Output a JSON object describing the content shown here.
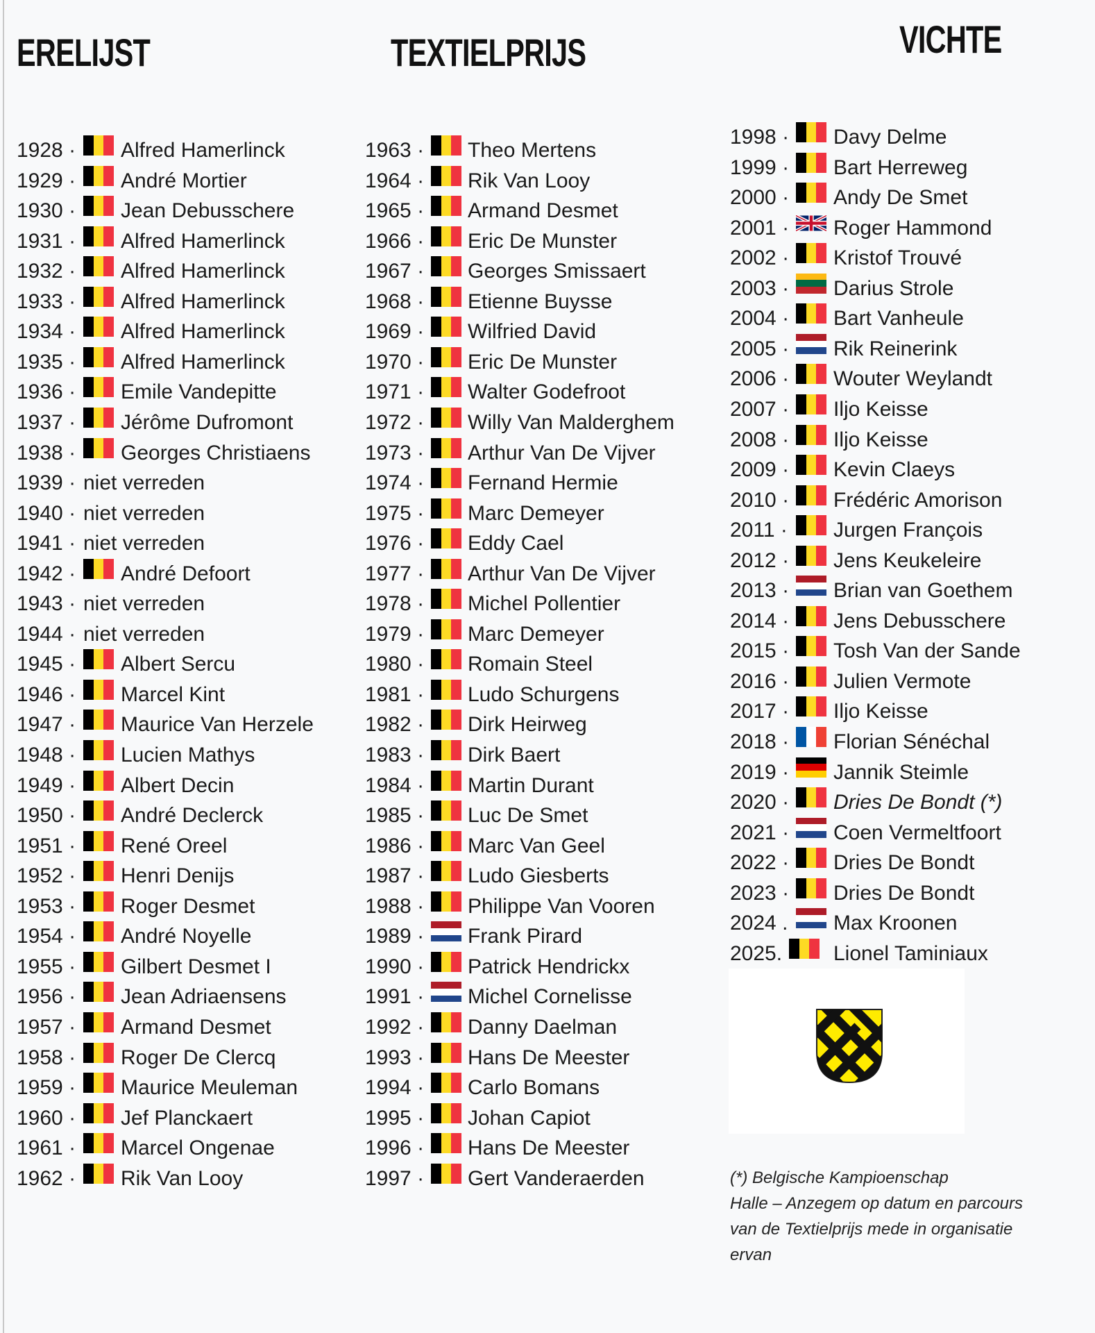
{
  "titles": {
    "col1": "ERELIJST",
    "col2": "TEXTIELPRIJS",
    "col3": "VICHTE"
  },
  "flag_colors": {
    "belgium": [
      "#000000",
      "#FDDA24",
      "#EF3340"
    ],
    "netherlands": [
      "#AE1C28",
      "#FFFFFF",
      "#21468B"
    ],
    "france": [
      "#0055A4",
      "#FFFFFF",
      "#EF4135"
    ],
    "germany": [
      "#000000",
      "#DD0000",
      "#FFCE00"
    ],
    "lithuania": [
      "#FDB913",
      "#006A44",
      "#C1272D"
    ]
  },
  "columns": [
    [
      {
        "year": "1928",
        "sep": " ·",
        "flag": "belgium",
        "name": "Alfred Hamerlinck"
      },
      {
        "year": "1929",
        "sep": " ·",
        "flag": "belgium",
        "name": "André Mortier"
      },
      {
        "year": "1930",
        "sep": " ·",
        "flag": "belgium",
        "name": "Jean Debusschere"
      },
      {
        "year": "1931",
        "sep": " ·",
        "flag": "belgium",
        "name": "Alfred Hamerlinck"
      },
      {
        "year": "1932",
        "sep": " ·",
        "flag": "belgium",
        "name": "Alfred Hamerlinck"
      },
      {
        "year": "1933",
        "sep": " ·",
        "flag": "belgium",
        "name": "Alfred Hamerlinck"
      },
      {
        "year": "1934",
        "sep": " ·",
        "flag": "belgium",
        "name": "Alfred Hamerlinck"
      },
      {
        "year": "1935",
        "sep": " ·",
        "flag": "belgium",
        "name": "Alfred Hamerlinck"
      },
      {
        "year": "1936",
        "sep": " ·",
        "flag": "belgium",
        "name": "Emile Vandepitte"
      },
      {
        "year": "1937",
        "sep": " ·",
        "flag": "belgium",
        "name": "Jérôme Dufromont"
      },
      {
        "year": "1938",
        "sep": " ·",
        "flag": "belgium",
        "name": "Georges Christiaens"
      },
      {
        "year": "1939",
        "sep": " ·",
        "flag": "",
        "name": "niet verreden"
      },
      {
        "year": "1940",
        "sep": " ·",
        "flag": "",
        "name": "niet verreden"
      },
      {
        "year": "1941",
        "sep": " ·",
        "flag": "",
        "name": "niet verreden"
      },
      {
        "year": "1942",
        "sep": " ·",
        "flag": "belgium",
        "name": "André Defoort"
      },
      {
        "year": "1943",
        "sep": " ·",
        "flag": "",
        "name": "niet verreden"
      },
      {
        "year": "1944",
        "sep": " ·",
        "flag": "",
        "name": "niet verreden"
      },
      {
        "year": "1945",
        "sep": " ·",
        "flag": "belgium",
        "name": "Albert Sercu"
      },
      {
        "year": "1946",
        "sep": " ·",
        "flag": "belgium",
        "name": "Marcel Kint"
      },
      {
        "year": "1947",
        "sep": " ·",
        "flag": "belgium",
        "name": "Maurice Van Herzele"
      },
      {
        "year": "1948",
        "sep": " ·",
        "flag": "belgium",
        "name": "Lucien Mathys"
      },
      {
        "year": "1949",
        "sep": " ·",
        "flag": "belgium",
        "name": "Albert Decin"
      },
      {
        "year": "1950",
        "sep": " ·",
        "flag": "belgium",
        "name": "André Declerck"
      },
      {
        "year": "1951",
        "sep": " ·",
        "flag": "belgium",
        "name": "René Oreel"
      },
      {
        "year": "1952",
        "sep": " ·",
        "flag": "belgium",
        "name": "Henri Denijs"
      },
      {
        "year": "1953",
        "sep": " ·",
        "flag": "belgium",
        "name": "Roger Desmet"
      },
      {
        "year": "1954",
        "sep": " ·",
        "flag": "belgium",
        "name": "André Noyelle"
      },
      {
        "year": "1955",
        "sep": " ·",
        "flag": "belgium",
        "name": "Gilbert Desmet I"
      },
      {
        "year": "1956",
        "sep": " ·",
        "flag": "belgium",
        "name": "Jean Adriaensens"
      },
      {
        "year": "1957",
        "sep": " ·",
        "flag": "belgium",
        "name": "Armand Desmet"
      },
      {
        "year": "1958",
        "sep": " ·",
        "flag": "belgium",
        "name": "Roger De Clercq"
      },
      {
        "year": "1959",
        "sep": " ·",
        "flag": "belgium",
        "name": "Maurice Meuleman"
      },
      {
        "year": "1960",
        "sep": " ·",
        "flag": "belgium",
        "name": "Jef Planckaert"
      },
      {
        "year": "1961",
        "sep": " ·",
        "flag": "belgium",
        "name": "Marcel Ongenae"
      },
      {
        "year": "1962",
        "sep": " ·",
        "flag": "belgium",
        "name": "Rik Van Looy"
      }
    ],
    [
      {
        "year": "1963",
        "sep": " ·",
        "flag": "belgium",
        "name": "Theo Mertens"
      },
      {
        "year": "1964",
        "sep": " ·",
        "flag": "belgium",
        "name": "Rik Van Looy"
      },
      {
        "year": "1965",
        "sep": " ·",
        "flag": "belgium",
        "name": "Armand Desmet"
      },
      {
        "year": "1966",
        "sep": " ·",
        "flag": "belgium",
        "name": "Eric De Munster"
      },
      {
        "year": "1967",
        "sep": " ·",
        "flag": "belgium",
        "name": "Georges Smissaert"
      },
      {
        "year": "1968",
        "sep": " ·",
        "flag": "belgium",
        "name": "Etienne Buysse"
      },
      {
        "year": "1969",
        "sep": " ·",
        "flag": "belgium",
        "name": "Wilfried David"
      },
      {
        "year": "1970",
        "sep": " ·",
        "flag": "belgium",
        "name": "Eric De Munster"
      },
      {
        "year": "1971",
        "sep": " ·",
        "flag": "belgium",
        "name": "Walter Godefroot"
      },
      {
        "year": "1972",
        "sep": " ·",
        "flag": "belgium",
        "name": "Willy Van Malderghem"
      },
      {
        "year": "1973",
        "sep": " ·",
        "flag": "belgium",
        "name": "Arthur Van De Vijver"
      },
      {
        "year": "1974",
        "sep": " ·",
        "flag": "belgium",
        "name": "Fernand Hermie"
      },
      {
        "year": "1975",
        "sep": " ·",
        "flag": "belgium",
        "name": "Marc Demeyer"
      },
      {
        "year": "1976",
        "sep": " ·",
        "flag": "belgium",
        "name": "Eddy Cael"
      },
      {
        "year": "1977",
        "sep": " ·",
        "flag": "belgium",
        "name": "Arthur Van De Vijver"
      },
      {
        "year": "1978",
        "sep": " ·",
        "flag": "belgium",
        "name": "Michel Pollentier"
      },
      {
        "year": "1979",
        "sep": " ·",
        "flag": "belgium",
        "name": "Marc Demeyer"
      },
      {
        "year": "1980",
        "sep": " ·",
        "flag": "belgium",
        "name": "Romain Steel"
      },
      {
        "year": "1981",
        "sep": " ·",
        "flag": "belgium",
        "name": "Ludo Schurgens"
      },
      {
        "year": "1982",
        "sep": " ·",
        "flag": "belgium",
        "name": "Dirk Heirweg"
      },
      {
        "year": "1983",
        "sep": " ·",
        "flag": "belgium",
        "name": "Dirk Baert"
      },
      {
        "year": "1984",
        "sep": " ·",
        "flag": "belgium",
        "name": "Martin Durant"
      },
      {
        "year": "1985",
        "sep": " ·",
        "flag": "belgium",
        "name": "Luc De Smet"
      },
      {
        "year": "1986",
        "sep": " ·",
        "flag": "belgium",
        "name": "Marc Van Geel"
      },
      {
        "year": "1987",
        "sep": " ·",
        "flag": "belgium",
        "name": "Ludo Giesberts"
      },
      {
        "year": "1988",
        "sep": " ·",
        "flag": "belgium",
        "name": "Philippe Van Vooren"
      },
      {
        "year": "1989",
        "sep": " ·",
        "flag": "netherlands",
        "name": "Frank Pirard"
      },
      {
        "year": "1990",
        "sep": " ·",
        "flag": "belgium",
        "name": "Patrick Hendrickx"
      },
      {
        "year": "1991",
        "sep": " ·",
        "flag": "netherlands",
        "name": "Michel Cornelisse"
      },
      {
        "year": "1992",
        "sep": " ·",
        "flag": "belgium",
        "name": "Danny Daelman"
      },
      {
        "year": "1993",
        "sep": " ·",
        "flag": "belgium",
        "name": "Hans De Meester"
      },
      {
        "year": "1994",
        "sep": " ·",
        "flag": "belgium",
        "name": "Carlo Bomans"
      },
      {
        "year": "1995",
        "sep": " ·",
        "flag": "belgium",
        "name": "Johan Capiot"
      },
      {
        "year": "1996",
        "sep": " ·",
        "flag": "belgium",
        "name": "Hans De Meester"
      },
      {
        "year": "1997",
        "sep": " ·",
        "flag": "belgium",
        "name": "Gert Vanderaerden"
      }
    ],
    [
      {
        "year": "1998",
        "sep": " ·",
        "flag": "belgium",
        "name": "Davy Delme"
      },
      {
        "year": "1999",
        "sep": " ·",
        "flag": "belgium",
        "name": "Bart Herreweg"
      },
      {
        "year": "2000",
        "sep": " ·",
        "flag": "belgium",
        "name": "Andy De Smet"
      },
      {
        "year": "2001",
        "sep": " ·",
        "flag": "great-britain",
        "name": "Roger Hammond"
      },
      {
        "year": "2002",
        "sep": " ·",
        "flag": "belgium",
        "name": "Kristof Trouvé"
      },
      {
        "year": "2003",
        "sep": " ·",
        "flag": "lithuania",
        "name": "Darius Strole"
      },
      {
        "year": "2004",
        "sep": " ·",
        "flag": "belgium",
        "name": "Bart Vanheule"
      },
      {
        "year": "2005",
        "sep": " ·",
        "flag": "netherlands",
        "name": "Rik Reinerink"
      },
      {
        "year": "2006",
        "sep": " ·",
        "flag": "belgium",
        "name": "Wouter Weylandt"
      },
      {
        "year": "2007",
        "sep": " ·",
        "flag": "belgium",
        "name": "Iljo Keisse"
      },
      {
        "year": "2008",
        "sep": " ·",
        "flag": "belgium",
        "name": "Iljo Keisse"
      },
      {
        "year": "2009",
        "sep": " ·",
        "flag": "belgium",
        "name": "Kevin Claeys"
      },
      {
        "year": "2010",
        "sep": " ·",
        "flag": "belgium",
        "name": "Frédéric Amorison"
      },
      {
        "year": "2011",
        "sep": " ·",
        "flag": "belgium",
        "name": "Jurgen François"
      },
      {
        "year": "2012",
        "sep": " ·",
        "flag": "belgium",
        "name": "Jens Keukeleire"
      },
      {
        "year": "2013",
        "sep": " ·",
        "flag": "netherlands",
        "name": "Brian van Goethem"
      },
      {
        "year": "2014",
        "sep": " ·",
        "flag": "belgium",
        "name": "Jens Debusschere"
      },
      {
        "year": "2015",
        "sep": " ·",
        "flag": "belgium",
        "name": "Tosh Van der Sande"
      },
      {
        "year": "2016",
        "sep": " ·",
        "flag": "belgium",
        "name": "Julien Vermote"
      },
      {
        "year": "2017",
        "sep": " ·",
        "flag": "belgium",
        "name": "Iljo Keisse"
      },
      {
        "year": "2018",
        "sep": " ·",
        "flag": "france",
        "name": "Florian Sénéchal"
      },
      {
        "year": "2019",
        "sep": " ·",
        "flag": "germany",
        "name": "Jannik Steimle"
      },
      {
        "year": "2020",
        "sep": " ·",
        "flag": "belgium",
        "name": "Dries De Bondt (*)",
        "italic": true
      },
      {
        "year": "2021",
        "sep": " ·",
        "flag": "netherlands",
        "name": "Coen Vermeltfoort"
      },
      {
        "year": "2022",
        "sep": " ·",
        "flag": "belgium",
        "name": "Dries De Bondt"
      },
      {
        "year": "2023",
        "sep": " ·",
        "flag": "belgium",
        "name": "Dries De Bondt"
      },
      {
        "year": "2024",
        "sep": " .",
        "flag": "netherlands",
        "name": "Max Kroonen"
      },
      {
        "year": "2025",
        "sep": ".",
        "flag": "belgium",
        "name": "Lionel Taminiaux"
      }
    ]
  ],
  "logo": {
    "name": "vichte-coat-of-arms",
    "colors": [
      "#FFEB00",
      "#111111"
    ]
  },
  "footnote": [
    "(*) Belgische Kampioenschap",
    "Halle – Anzegem op datum en parcours",
    "van de Textielprijs mede in organisatie",
    "ervan"
  ]
}
